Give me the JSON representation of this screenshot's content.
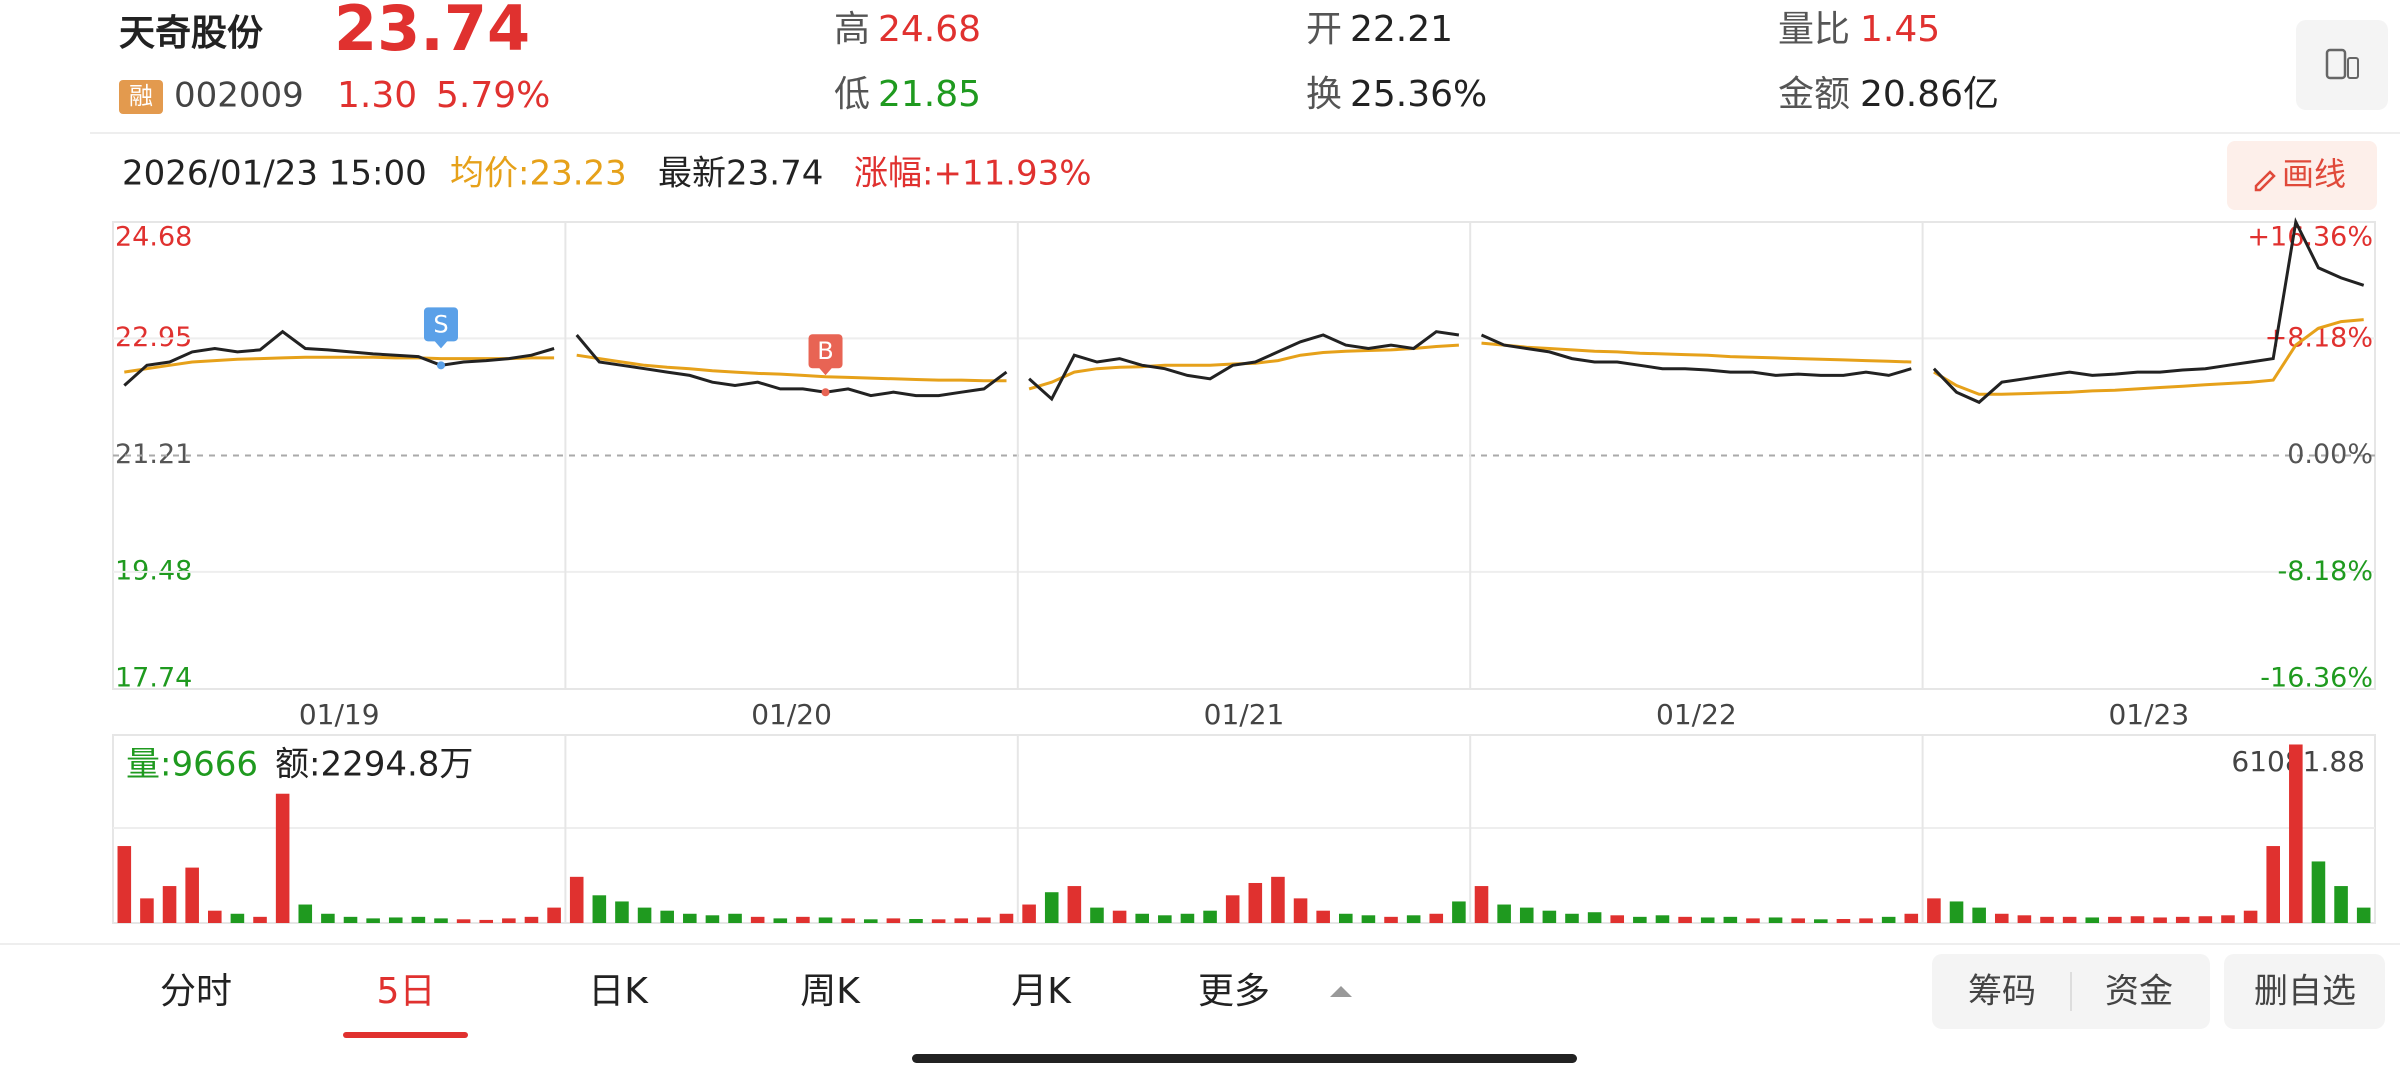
{
  "header": {
    "name": "天奇股份",
    "price": "23.74",
    "badge": "融",
    "code": "002009",
    "change": "1.30",
    "change_pct": "5.79%",
    "high_label": "高",
    "high": "24.68",
    "low_label": "低",
    "low": "21.85",
    "open_label": "开",
    "open": "22.21",
    "turnover_label": "换",
    "turnover": "25.36%",
    "vol_ratio_label": "量比",
    "vol_ratio": "1.45",
    "amount_label": "金额",
    "amount": "20.86亿"
  },
  "info_bar": {
    "datetime": "2026/01/23 15:00",
    "avg": "均价:23.23",
    "latest": "最新23.74",
    "change": "涨幅:+11.93%",
    "draw_button": "画线"
  },
  "chart_data": {
    "type": "intraday",
    "price_color": "#222222",
    "avg_color": "#e6a11a",
    "up_color": "#e0312f",
    "down_color": "#1f9a1f",
    "ylim": [
      17.74,
      24.68
    ],
    "yticks": [
      24.68,
      22.95,
      21.21,
      19.48,
      17.74
    ],
    "y2lim": [
      -16.36,
      16.36
    ],
    "y2ticks": [
      {
        "value": 16.36,
        "label": "+16.36%"
      },
      {
        "value": 8.18,
        "label": "+8.18%"
      },
      {
        "value": 0,
        "label": "0.00%"
      },
      {
        "value": -8.18,
        "label": "-8.18%"
      },
      {
        "value": -16.36,
        "label": "-16.36%"
      }
    ],
    "markers": [
      "S",
      "B"
    ],
    "days": [
      {
        "date": "01/19",
        "price": [
          22.25,
          22.55,
          22.6,
          22.75,
          22.8,
          22.75,
          22.78,
          23.05,
          22.8,
          22.78,
          22.75,
          22.72,
          22.7,
          22.68,
          22.55,
          22.6,
          22.62,
          22.65,
          22.7,
          22.8
        ],
        "avg": [
          22.45,
          22.5,
          22.55,
          22.6,
          22.62,
          22.64,
          22.65,
          22.66,
          22.67,
          22.67,
          22.67,
          22.67,
          22.66,
          22.66,
          22.65,
          22.65,
          22.65,
          22.65,
          22.66,
          22.66
        ],
        "volume": [
          25000,
          8000,
          12000,
          18000,
          4000,
          3000,
          2000,
          42000,
          6000,
          3000,
          2000,
          1500,
          1800,
          2000,
          1500,
          1200,
          1000,
          1500,
          2000,
          5000
        ]
      },
      {
        "date": "01/20",
        "price": [
          23.0,
          22.6,
          22.55,
          22.5,
          22.45,
          22.4,
          22.3,
          22.25,
          22.3,
          22.2,
          22.2,
          22.15,
          22.2,
          22.1,
          22.15,
          22.1,
          22.1,
          22.15,
          22.2,
          22.45
        ],
        "avg": [
          22.7,
          22.65,
          22.6,
          22.55,
          22.52,
          22.5,
          22.47,
          22.45,
          22.43,
          22.42,
          22.4,
          22.38,
          22.37,
          22.36,
          22.35,
          22.34,
          22.33,
          22.33,
          22.32,
          22.32
        ],
        "volume": [
          15000,
          9000,
          7000,
          5000,
          4000,
          3000,
          2500,
          3000,
          2000,
          1500,
          2000,
          1800,
          1500,
          1200,
          1500,
          1300,
          1200,
          1500,
          1800,
          3000
        ]
      },
      {
        "date": "01/21",
        "price": [
          22.35,
          22.05,
          22.7,
          22.6,
          22.65,
          22.55,
          22.5,
          22.4,
          22.35,
          22.55,
          22.6,
          22.75,
          22.9,
          23.0,
          22.85,
          22.8,
          22.85,
          22.8,
          23.05,
          23.0
        ],
        "avg": [
          22.2,
          22.3,
          22.45,
          22.5,
          22.52,
          22.53,
          22.55,
          22.55,
          22.55,
          22.57,
          22.58,
          22.62,
          22.7,
          22.74,
          22.76,
          22.77,
          22.78,
          22.8,
          22.83,
          22.85
        ],
        "volume": [
          6000,
          10000,
          12000,
          5000,
          4000,
          3000,
          2500,
          3000,
          4000,
          9000,
          13000,
          15000,
          8000,
          4000,
          3000,
          2500,
          2000,
          2500,
          3000,
          7000
        ]
      },
      {
        "date": "01/22",
        "price": [
          23.0,
          22.85,
          22.8,
          22.75,
          22.65,
          22.6,
          22.6,
          22.55,
          22.5,
          22.5,
          22.48,
          22.45,
          22.45,
          22.4,
          22.42,
          22.4,
          22.4,
          22.45,
          22.4,
          22.5
        ],
        "avg": [
          22.88,
          22.85,
          22.82,
          22.8,
          22.78,
          22.76,
          22.75,
          22.73,
          22.72,
          22.71,
          22.7,
          22.68,
          22.67,
          22.66,
          22.65,
          22.64,
          22.63,
          22.62,
          22.61,
          22.6
        ],
        "volume": [
          12000,
          6000,
          5000,
          4000,
          3000,
          3500,
          2500,
          2000,
          2500,
          2000,
          1800,
          2000,
          1500,
          1800,
          1500,
          1200,
          1300,
          1500,
          2000,
          3000
        ]
      },
      {
        "date": "01/23",
        "price": [
          22.5,
          22.15,
          22.0,
          22.3,
          22.35,
          22.4,
          22.45,
          22.4,
          22.42,
          22.45,
          22.45,
          22.48,
          22.5,
          22.55,
          22.6,
          22.65,
          24.68,
          24.0,
          23.85,
          23.74
        ],
        "avg": [
          22.45,
          22.25,
          22.12,
          22.12,
          22.13,
          22.14,
          22.15,
          22.17,
          22.18,
          22.2,
          22.22,
          22.24,
          22.26,
          22.28,
          22.3,
          22.33,
          22.85,
          23.1,
          23.2,
          23.23
        ],
        "volume": [
          8000,
          7000,
          5000,
          3000,
          2500,
          2000,
          2000,
          1800,
          2000,
          2200,
          1800,
          2000,
          2200,
          2500,
          4000,
          25000,
          58000,
          20000,
          12000,
          5000
        ]
      }
    ],
    "volume": {
      "label": "量:9666",
      "amount": "额:2294.8万",
      "ylim": [
        0,
        61081.88
      ],
      "yticks": [
        61081.88
      ]
    }
  },
  "tabs": [
    "分时",
    "5日",
    "日K",
    "周K",
    "月K",
    "更多"
  ],
  "buttons": [
    "筹码",
    "资金",
    "删自选"
  ]
}
